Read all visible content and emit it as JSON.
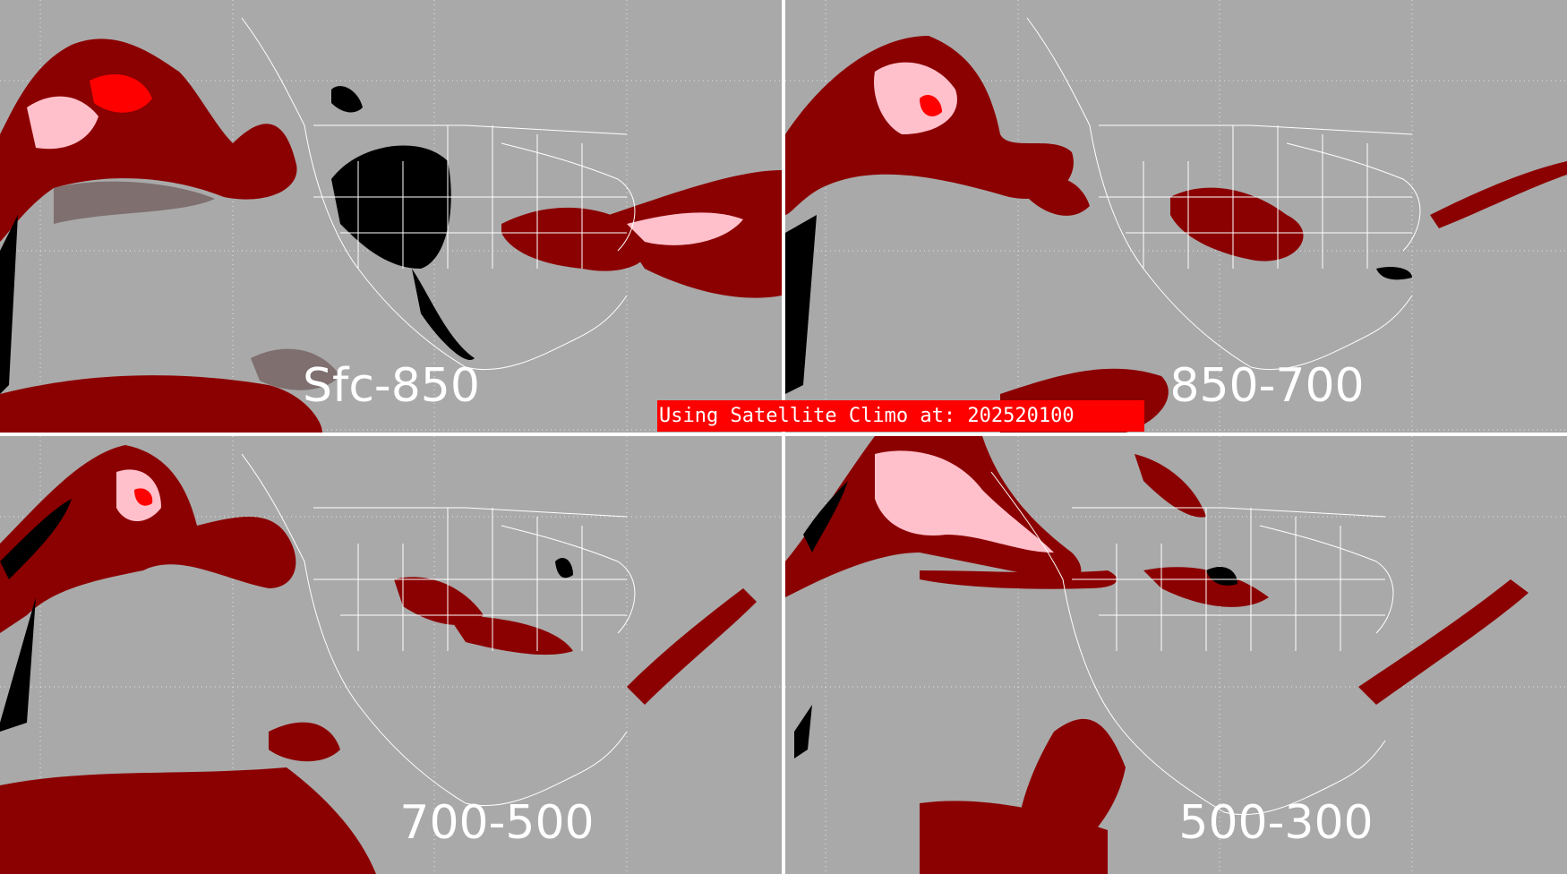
{
  "figure": {
    "banner_text": "Using Satellite Climo at: 202520100",
    "colors": {
      "ocean_background": "#a9a9a9",
      "level_low": "#8b0000",
      "level_mid": "#ff0000",
      "level_high": "#ffc0cb",
      "haze": "#7f6f6f",
      "no_data": "#000000",
      "border_lines": "#ffffff",
      "divider": "#ffffff"
    }
  },
  "panels": [
    {
      "id": "sfc-850",
      "label": "Sfc-850"
    },
    {
      "id": "850-700",
      "label": "850-700"
    },
    {
      "id": "700-500",
      "label": "700-500"
    },
    {
      "id": "500-300",
      "label": "500-300"
    }
  ]
}
